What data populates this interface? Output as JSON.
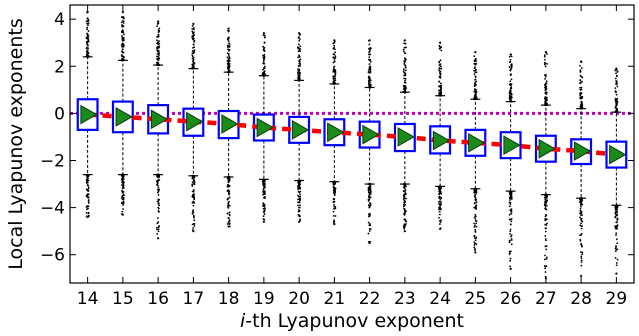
{
  "chart_data": {
    "type": "box",
    "xlabel_prefix": "i",
    "xlabel_rest": "-th Lyapunov exponent",
    "ylabel": "Local Lyapunov exponents",
    "categories": [
      "14",
      "15",
      "16",
      "17",
      "18",
      "19",
      "20",
      "21",
      "22",
      "23",
      "24",
      "25",
      "26",
      "27",
      "28",
      "29"
    ],
    "xlim": [
      13.5,
      29.5
    ],
    "ylim": [
      -7.2,
      4.6
    ],
    "yticks": [
      -6,
      -4,
      -2,
      0,
      2,
      4
    ],
    "ytick_labels": [
      "−6",
      "−4",
      "−2",
      "0",
      "2",
      "4"
    ],
    "reference_line_y": 0,
    "boxes": [
      {
        "cat": "14",
        "q1": -0.7,
        "median": -0.05,
        "q3": 0.6,
        "mean": -0.05,
        "whisker_low": -2.6,
        "whisker_high": 2.4,
        "flier_low": -4.4,
        "flier_high": 4.3
      },
      {
        "cat": "15",
        "q1": -0.8,
        "median": -0.15,
        "q3": 0.5,
        "mean": -0.15,
        "whisker_low": -2.6,
        "whisker_high": 2.25,
        "flier_low": -4.3,
        "flier_high": 4.3
      },
      {
        "cat": "16",
        "q1": -0.85,
        "median": -0.25,
        "q3": 0.35,
        "mean": -0.25,
        "whisker_low": -2.6,
        "whisker_high": 2.05,
        "flier_low": -5.3,
        "flier_high": 3.9
      },
      {
        "cat": "17",
        "q1": -0.95,
        "median": -0.35,
        "q3": 0.2,
        "mean": -0.35,
        "whisker_low": -2.65,
        "whisker_high": 1.9,
        "flier_low": -5.0,
        "flier_high": 3.8
      },
      {
        "cat": "18",
        "q1": -1.05,
        "median": -0.45,
        "q3": 0.1,
        "mean": -0.45,
        "whisker_low": -2.7,
        "whisker_high": 1.75,
        "flier_low": -4.8,
        "flier_high": 3.6
      },
      {
        "cat": "19",
        "q1": -1.15,
        "median": -0.6,
        "q3": -0.05,
        "mean": -0.6,
        "whisker_low": -2.8,
        "whisker_high": 1.6,
        "flier_low": -4.6,
        "flier_high": 3.4
      },
      {
        "cat": "20",
        "q1": -1.25,
        "median": -0.7,
        "q3": -0.15,
        "mean": -0.7,
        "whisker_low": -2.85,
        "whisker_high": 1.4,
        "flier_low": -4.6,
        "flier_high": 3.4
      },
      {
        "cat": "21",
        "q1": -1.35,
        "median": -0.8,
        "q3": -0.25,
        "mean": -0.8,
        "whisker_low": -2.9,
        "whisker_high": 1.25,
        "flier_low": -4.7,
        "flier_high": 3.1
      },
      {
        "cat": "22",
        "q1": -1.45,
        "median": -0.9,
        "q3": -0.35,
        "mean": -0.9,
        "whisker_low": -3.0,
        "whisker_high": 1.1,
        "flier_low": -5.5,
        "flier_high": 3.1
      },
      {
        "cat": "23",
        "q1": -1.6,
        "median": -1.0,
        "q3": -0.45,
        "mean": -1.0,
        "whisker_low": -3.0,
        "whisker_high": 0.9,
        "flier_low": -5.0,
        "flier_high": 3.1
      },
      {
        "cat": "24",
        "q1": -1.7,
        "median": -1.15,
        "q3": -0.55,
        "mean": -1.15,
        "whisker_low": -3.1,
        "whisker_high": 0.75,
        "flier_low": -4.9,
        "flier_high": 3.0
      },
      {
        "cat": "25",
        "q1": -1.8,
        "median": -1.25,
        "q3": -0.7,
        "mean": -1.25,
        "whisker_low": -3.2,
        "whisker_high": 0.6,
        "flier_low": -5.9,
        "flier_high": 2.6
      },
      {
        "cat": "26",
        "q1": -1.9,
        "median": -1.35,
        "q3": -0.8,
        "mean": -1.35,
        "whisker_low": -3.3,
        "whisker_high": 0.5,
        "flier_low": -6.6,
        "flier_high": 2.5
      },
      {
        "cat": "27",
        "q1": -2.05,
        "median": -1.5,
        "q3": -0.95,
        "mean": -1.5,
        "whisker_low": -3.45,
        "whisker_high": 0.35,
        "flier_low": -7.0,
        "flier_high": 2.6
      },
      {
        "cat": "28",
        "q1": -2.15,
        "median": -1.6,
        "q3": -1.1,
        "mean": -1.6,
        "whisker_low": -3.6,
        "whisker_high": 0.2,
        "flier_low": -6.9,
        "flier_high": 2.2
      },
      {
        "cat": "29",
        "q1": -2.3,
        "median": -1.75,
        "q3": -1.2,
        "mean": -1.75,
        "whisker_low": -3.9,
        "whisker_high": 0.05,
        "flier_low": -6.8,
        "flier_high": 1.9
      }
    ],
    "colors": {
      "box": "#0000ff",
      "whisker": "#000000",
      "flier": "#000000",
      "mean_marker": "#1a8a1a",
      "mean_marker_edge": "#0a3d0a",
      "median_line": "#ff0000",
      "reference_line": "#bf00bf"
    },
    "grid": false,
    "legend": "none"
  }
}
